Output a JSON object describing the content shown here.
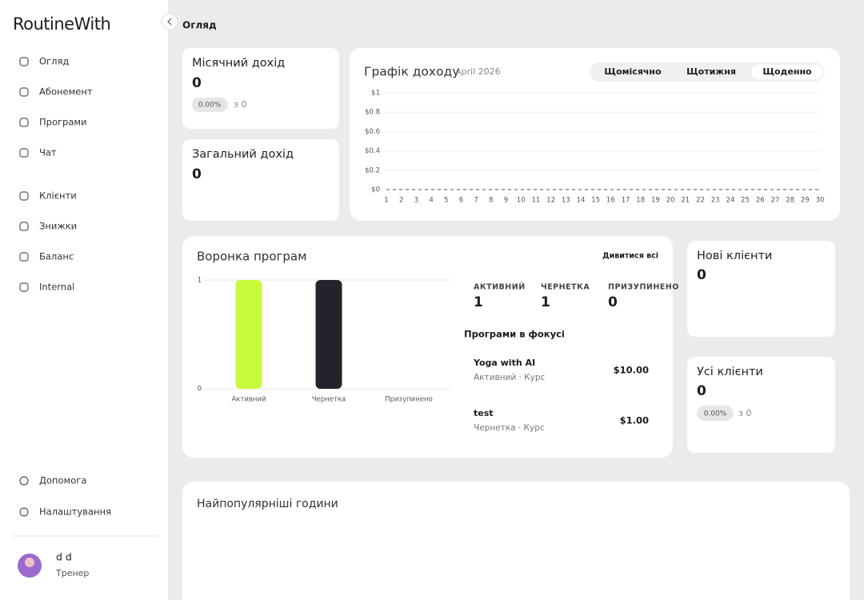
{
  "sidebar": {
    "logo": "RoutineWith",
    "nav": [
      "Огляд",
      "Абонемент",
      "Програми",
      "Чат",
      "Клієнти",
      "Знижки",
      "Баланс",
      "Internal"
    ],
    "bottom": [
      "Допомога",
      "Налаштування"
    ],
    "user": {
      "name": "d d",
      "role": "Тренер"
    }
  },
  "header": {
    "title": "Огляд"
  },
  "monthly_income": {
    "title": "Місячний дохід",
    "value": 0,
    "change": "0.00%",
    "compare": "з 0"
  },
  "total_income": {
    "title": "Загальний дохід",
    "value": 0
  },
  "income_tabs": {
    "items": [
      "Щомісячно",
      "Щотижня",
      "Щоденно"
    ],
    "active": 2
  },
  "funnel": {
    "link": "Дивитися всі",
    "stats": [
      {
        "label": "АКТИВНИЙ",
        "value": 1
      },
      {
        "label": "ЧЕРНЕТКА",
        "value": 1
      },
      {
        "label": "ПРИЗУПИНЕНО",
        "value": 0
      }
    ],
    "focus_title": "Програми в фокусі",
    "programs": [
      {
        "name": "Yoga with AI",
        "meta": "Активний · Курс",
        "price": "$10.00"
      },
      {
        "name": "test",
        "meta": "Чернетка · Курс",
        "price": "$1.00"
      }
    ]
  },
  "new_clients": {
    "title": "Нові клієнти",
    "value": 0
  },
  "all_clients": {
    "title": "Усі клієнти",
    "value": 0,
    "change": "0.00%",
    "compare": "з 0"
  },
  "popular_hours": {
    "title": "Найпопулярніші години"
  },
  "chart_data": [
    {
      "type": "line",
      "title": "Графік доходу",
      "subtitle": "April 2026",
      "x": [
        1,
        2,
        3,
        4,
        5,
        6,
        7,
        8,
        9,
        10,
        11,
        12,
        13,
        14,
        15,
        16,
        17,
        18,
        19,
        20,
        21,
        22,
        23,
        24,
        25,
        26,
        27,
        28,
        29,
        30
      ],
      "values": [
        0,
        0,
        0,
        0,
        0,
        0,
        0,
        0,
        0,
        0,
        0,
        0,
        0,
        0,
        0,
        0,
        0,
        0,
        0,
        0,
        0,
        0,
        0,
        0,
        0,
        0,
        0,
        0,
        0,
        0
      ],
      "color": "#555555",
      "xlim": [
        1,
        30
      ],
      "xticks": [
        1,
        2,
        3,
        4,
        5,
        6,
        7,
        8,
        9,
        10,
        11,
        12,
        13,
        14,
        15,
        16,
        17,
        18,
        19,
        20,
        21,
        22,
        23,
        24,
        25,
        26,
        27,
        28,
        29,
        30
      ],
      "ylim": [
        0,
        1
      ],
      "yticks": [
        {
          "value": 0,
          "label": "$0"
        },
        {
          "value": 0.2,
          "label": "$0.2"
        },
        {
          "value": 0.4,
          "label": "$0.4"
        },
        {
          "value": 0.6,
          "label": "$0.6"
        },
        {
          "value": 0.8,
          "label": "$0.8"
        },
        {
          "value": 1,
          "label": "$1"
        }
      ],
      "grid": true
    },
    {
      "type": "bar",
      "title": "Воронка програм",
      "categories": [
        "Активний",
        "Чернетка",
        "Призупинено"
      ],
      "values": [
        1,
        1,
        0
      ],
      "colors": [
        "#c8fa3c",
        "#23232b",
        "#c8c8c8"
      ],
      "ylim": [
        0,
        1
      ],
      "yticks": [
        0,
        1
      ],
      "grid": true
    }
  ]
}
